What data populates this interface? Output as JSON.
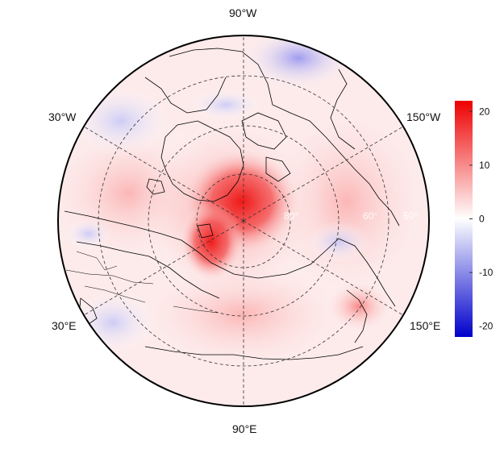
{
  "map": {
    "projection": "north-polar-stereographic",
    "longitude_labels": {
      "top": "90°W",
      "bottom": "90°E",
      "upper_left": "30°W",
      "upper_right": "150°W",
      "lower_left": "30°E",
      "lower_right": "150°E"
    },
    "latitude_labels": [
      "80°",
      "60°",
      "50°"
    ],
    "graticule": "dashed",
    "coastlines": "black"
  },
  "colorbar": {
    "ticks": [
      "20",
      "10",
      "0",
      "-10",
      "-20"
    ],
    "range": [
      -22,
      22
    ],
    "colors": {
      "high": "#ee0000",
      "mid": "#ffffff",
      "low": "#0000cc"
    }
  }
}
